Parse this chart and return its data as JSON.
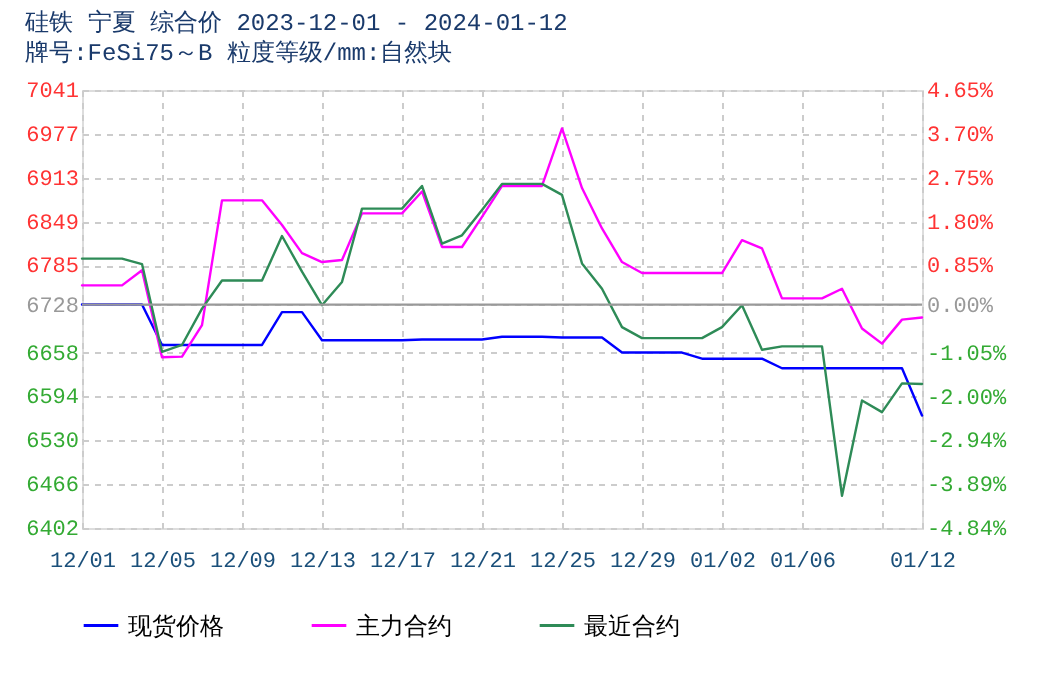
{
  "chart_data": {
    "type": "line",
    "title": "硅铁  宁夏  综合价  2023-12-01 - 2024-01-12",
    "subtitle": "牌号:FeSi75～B  粒度等级/mm:自然块",
    "x": [
      "2023-12-01",
      "2023-12-02",
      "2023-12-03",
      "2023-12-04",
      "2023-12-05",
      "2023-12-06",
      "2023-12-07",
      "2023-12-08",
      "2023-12-09",
      "2023-12-10",
      "2023-12-11",
      "2023-12-12",
      "2023-12-13",
      "2023-12-14",
      "2023-12-15",
      "2023-12-16",
      "2023-12-17",
      "2023-12-18",
      "2023-12-19",
      "2023-12-20",
      "2023-12-21",
      "2023-12-22",
      "2023-12-23",
      "2023-12-24",
      "2023-12-25",
      "2023-12-26",
      "2023-12-27",
      "2023-12-28",
      "2023-12-29",
      "2023-12-30",
      "2023-12-31",
      "2024-01-01",
      "2024-01-02",
      "2024-01-03",
      "2024-01-04",
      "2024-01-05",
      "2024-01-06",
      "2024-01-07",
      "2024-01-08",
      "2024-01-09",
      "2024-01-10",
      "2024-01-11",
      "2024-01-12"
    ],
    "series": [
      {
        "name": "现货价格",
        "color": "#0000ff",
        "values": [
          6728,
          6728,
          6728,
          6728,
          6669,
          6669,
          6669,
          6669,
          6669,
          6669,
          6717,
          6717,
          6676,
          6676,
          6676,
          6676,
          6676,
          6677,
          6677,
          6677,
          6677,
          6681,
          6681,
          6681,
          6680,
          6680,
          6680,
          6658,
          6658,
          6658,
          6658,
          6649,
          6649,
          6649,
          6649,
          6635,
          6635,
          6635,
          6635,
          6635,
          6635,
          6635,
          6566
        ]
      },
      {
        "name": "主力合约",
        "color": "#ff00ff",
        "values": [
          6756,
          6756,
          6756,
          6778,
          6651,
          6652,
          6698,
          6880,
          6880,
          6880,
          6844,
          6803,
          6790,
          6793,
          6861,
          6861,
          6861,
          6893,
          6812,
          6812,
          6856,
          6901,
          6901,
          6901,
          6985,
          6898,
          6839,
          6790,
          6774,
          6774,
          6774,
          6774,
          6774,
          6822,
          6810,
          6737,
          6737,
          6737,
          6751,
          6693,
          6671,
          6706,
          6709
        ]
      },
      {
        "name": "最近合约",
        "color": "#2e8b57",
        "values": [
          6795,
          6795,
          6795,
          6787,
          6659,
          6669,
          6722,
          6763,
          6763,
          6763,
          6828,
          6776,
          6727,
          6761,
          6868,
          6868,
          6868,
          6901,
          6817,
          6829,
          6866,
          6904,
          6904,
          6904,
          6888,
          6788,
          6751,
          6695,
          6679,
          6679,
          6679,
          6679,
          6695,
          6727,
          6662,
          6667,
          6667,
          6667,
          6449,
          6588,
          6571,
          6613,
          6612
        ]
      }
    ],
    "xlim": [
      "2023-12-01",
      "2024-01-12"
    ],
    "xticks": [
      {
        "value": "2023-12-01",
        "label": "12/01"
      },
      {
        "value": "2023-12-05",
        "label": "12/05"
      },
      {
        "value": "2023-12-09",
        "label": "12/09"
      },
      {
        "value": "2023-12-13",
        "label": "12/13"
      },
      {
        "value": "2023-12-17",
        "label": "12/17"
      },
      {
        "value": "2023-12-21",
        "label": "12/21"
      },
      {
        "value": "2023-12-25",
        "label": "12/25"
      },
      {
        "value": "2023-12-29",
        "label": "12/29"
      },
      {
        "value": "2024-01-02",
        "label": "01/02"
      },
      {
        "value": "2024-01-06",
        "label": "01/06"
      },
      {
        "value": "2024-01-10",
        "label": null
      },
      {
        "value": "2024-01-12",
        "label": "01/12"
      }
    ],
    "ylim": [
      6402,
      7041
    ],
    "yticks": [
      6402,
      6466,
      6530,
      6594,
      6658,
      6728,
      6785,
      6849,
      6913,
      6977,
      7041
    ],
    "y2lim": [
      -4.84,
      4.65
    ],
    "y2ticks": [
      {
        "value": -4.84,
        "label": "-4.84%"
      },
      {
        "value": -3.89,
        "label": "-3.89%"
      },
      {
        "value": -2.94,
        "label": "-2.94%"
      },
      {
        "value": -2.0,
        "label": "-2.00%"
      },
      {
        "value": -1.05,
        "label": "-1.05%"
      },
      {
        "value": 0,
        "label": "0.00%"
      },
      {
        "value": 0.85,
        "label": "0.85%"
      },
      {
        "value": 1.8,
        "label": "1.80%"
      },
      {
        "value": 2.75,
        "label": "2.75%"
      },
      {
        "value": 3.7,
        "label": "3.70%"
      },
      {
        "value": 4.65,
        "label": "4.65%"
      }
    ],
    "ref_lines": [
      {
        "axis": "y2",
        "value": 0,
        "color": "#999999"
      }
    ],
    "grid": true,
    "legend": "bottom",
    "marker": "none",
    "line_style": "solid"
  }
}
